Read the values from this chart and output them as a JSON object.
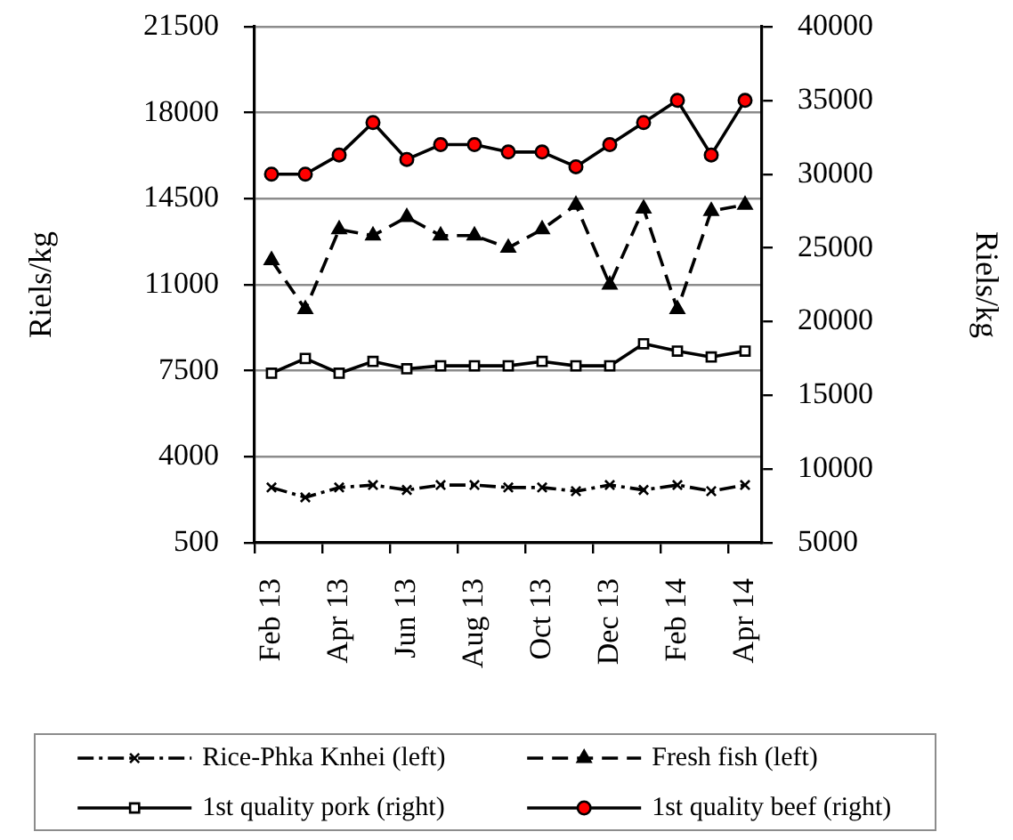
{
  "chart_data": {
    "type": "line",
    "categories": [
      "Feb 13",
      null,
      "Apr 13",
      null,
      "Jun 13",
      null,
      "Aug 13",
      null,
      "Oct 13",
      null,
      "Dec 13",
      null,
      "Feb 14",
      null,
      "Apr 14"
    ],
    "ylabel": "Riels/kg",
    "y2label": "Riels/kg",
    "ylim": [
      500,
      21500
    ],
    "yticks": [
      500,
      4000,
      7500,
      11000,
      14500,
      18000,
      21500
    ],
    "y2lim": [
      5000,
      40000
    ],
    "y2ticks": [
      5000,
      10000,
      15000,
      20000,
      25000,
      30000,
      35000,
      40000
    ],
    "grid": "y",
    "legend": "bottom",
    "series": [
      {
        "name": "Rice-Phka Knhei (left)",
        "color": "#000000",
        "marker": "cross",
        "line_style": "dashdot",
        "values": [
          2750,
          2350,
          2750,
          2850,
          2650,
          2850,
          2850,
          2750,
          2750,
          2600,
          2850,
          2650,
          2850,
          2600,
          2850
        ]
      },
      {
        "name": "Fresh fish (left)",
        "color": "#000000",
        "marker": "triangle",
        "line_style": "dashed",
        "values": [
          12000,
          10000,
          13250,
          13000,
          13750,
          13000,
          13000,
          12500,
          13250,
          14250,
          11000,
          14100,
          10000,
          14000,
          14250
        ]
      },
      {
        "name": "1st quality pork (right)",
        "color": "#000000",
        "marker": "square",
        "line_style": "solid",
        "axis": "y2",
        "values": [
          16500,
          17500,
          16500,
          17300,
          16800,
          17000,
          17000,
          17000,
          17300,
          17000,
          17000,
          18500,
          18000,
          17600,
          18000
        ]
      },
      {
        "name": "1st quality beef (right)",
        "color": "#000000",
        "colors": [
          "#ff0000",
          "#ff0000",
          "#ff0000",
          "#ff0000",
          "#ff0000",
          "#ff0000",
          "#ff0000",
          "#ff0000",
          "#ff0000",
          "#ff0000",
          "#ff0000",
          "#ff0000",
          "#ff0000",
          "#ff0000",
          "#ff0000"
        ],
        "marker": "circle",
        "line_style": "solid",
        "axis": "y2",
        "values": [
          30000,
          30000,
          31300,
          33500,
          31000,
          32000,
          32000,
          31500,
          31500,
          30500,
          32000,
          33500,
          35000,
          31300,
          35000
        ]
      }
    ]
  }
}
